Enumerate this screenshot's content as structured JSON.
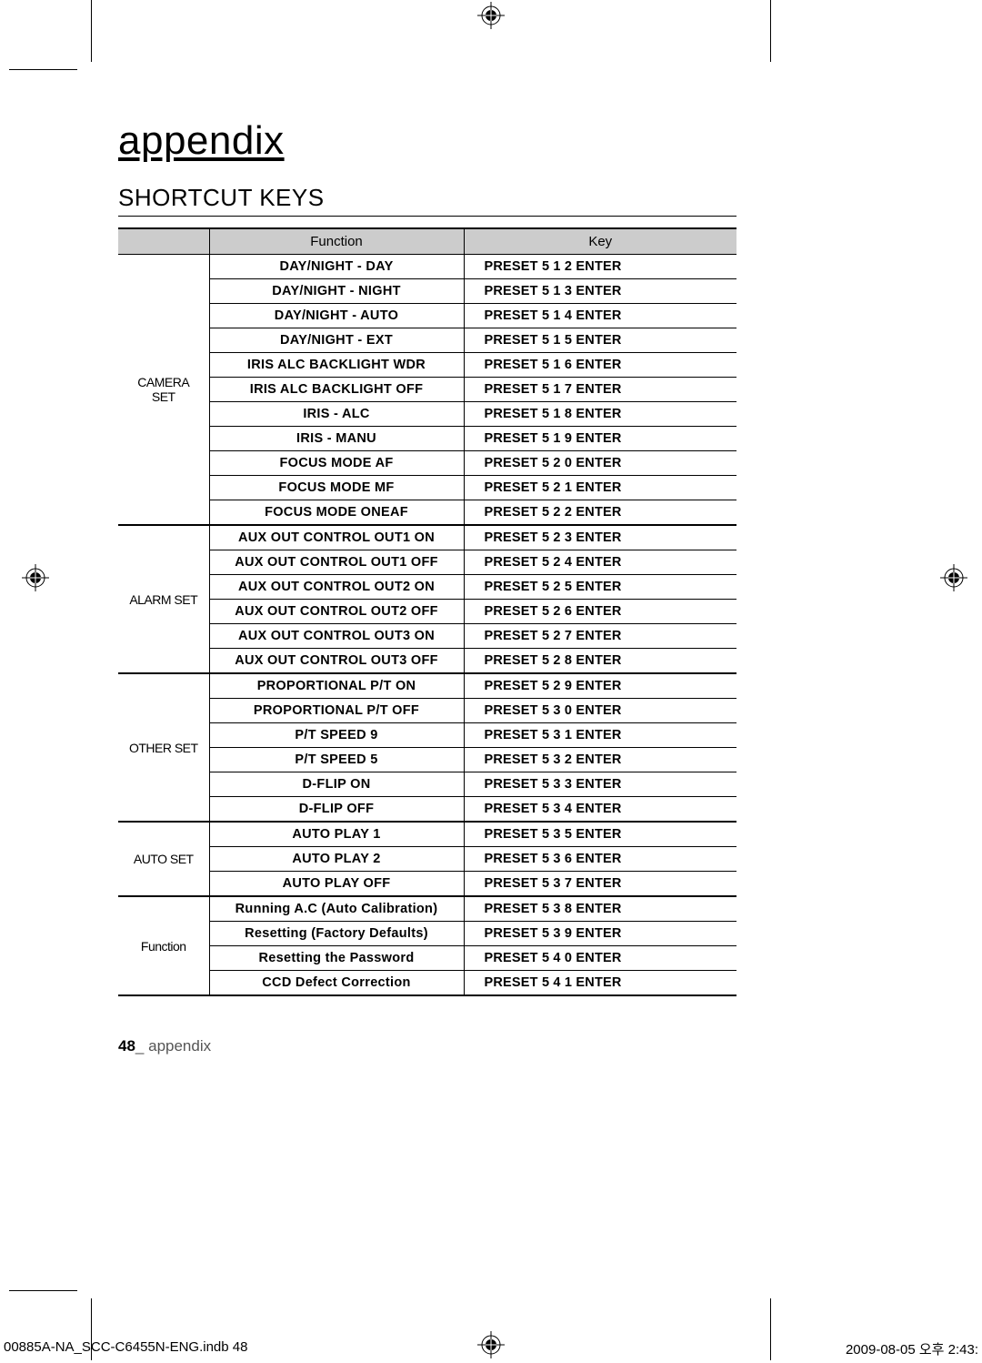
{
  "page": {
    "title": "appendix",
    "section": "SHORTCUT KEYS",
    "page_number": "48",
    "page_label": "appendix"
  },
  "table": {
    "headers": {
      "group": "",
      "function": "Function",
      "key": "Key"
    },
    "header_bg": "#cccccc",
    "border_color": "#000000",
    "groups": [
      {
        "label": "CAMERA SET",
        "rows": [
          {
            "func": "DAY/NIGHT - DAY",
            "key": "PRESET  5  1  2  ENTER"
          },
          {
            "func": "DAY/NIGHT - NIGHT",
            "key": "PRESET  5  1  3  ENTER"
          },
          {
            "func": "DAY/NIGHT - AUTO",
            "key": "PRESET  5  1  4  ENTER"
          },
          {
            "func": "DAY/NIGHT - EXT",
            "key": "PRESET  5  1  5  ENTER"
          },
          {
            "func": "IRIS  ALC  BACKLIGHT  WDR",
            "key": "PRESET  5  1  6  ENTER"
          },
          {
            "func": "IRIS  ALC  BACKLIGHT  OFF",
            "key": "PRESET  5  1  7  ENTER"
          },
          {
            "func": "IRIS - ALC",
            "key": "PRESET  5  1  8  ENTER"
          },
          {
            "func": "IRIS - MANU",
            "key": "PRESET  5  1  9  ENTER"
          },
          {
            "func": "FOCUS MODE  AF",
            "key": "PRESET  5  2  0  ENTER"
          },
          {
            "func": "FOCUS MODE  MF",
            "key": "PRESET  5  2  1  ENTER"
          },
          {
            "func": "FOCUS MODE  ONEAF",
            "key": "PRESET  5  2  2  ENTER"
          }
        ]
      },
      {
        "label": "ALARM SET",
        "rows": [
          {
            "func": "AUX OUT CONTROL  OUT1  ON",
            "key": "PRESET  5  2  3  ENTER"
          },
          {
            "func": "AUX OUT CONTROL  OUT1  OFF",
            "key": "PRESET  5  2  4  ENTER"
          },
          {
            "func": "AUX OUT CONTROL  OUT2  ON",
            "key": "PRESET  5  2  5  ENTER"
          },
          {
            "func": "AUX OUT CONTROL  OUT2  OFF",
            "key": "PRESET  5  2  6  ENTER"
          },
          {
            "func": "AUX OUT CONTROL  OUT3  ON",
            "key": "PRESET  5  2  7  ENTER"
          },
          {
            "func": "AUX OUT CONTROL  OUT3  OFF",
            "key": "PRESET  5  2  8  ENTER"
          }
        ]
      },
      {
        "label": "OTHER SET",
        "rows": [
          {
            "func": "PROPORTIONAL P/T  ON",
            "key": "PRESET  5  2  9  ENTER"
          },
          {
            "func": "PROPORTIONAL P/T  OFF",
            "key": "PRESET  5  3  0  ENTER"
          },
          {
            "func": "P/T SPEED  9",
            "key": "PRESET  5  3  1  ENTER"
          },
          {
            "func": "P/T SPEED  5",
            "key": "PRESET  5  3  2  ENTER"
          },
          {
            "func": "D-FLIP  ON",
            "key": "PRESET  5  3  3  ENTER"
          },
          {
            "func": "D-FLIP  OFF",
            "key": "PRESET  5  3  4  ENTER"
          }
        ]
      },
      {
        "label": "AUTO SET",
        "rows": [
          {
            "func": "AUTO PLAY  1",
            "key": "PRESET  5  3  5  ENTER"
          },
          {
            "func": "AUTO PLAY  2",
            "key": "PRESET  5  3  6  ENTER"
          },
          {
            "func": "AUTO PLAY  OFF",
            "key": "PRESET  5  3  7  ENTER"
          }
        ]
      },
      {
        "label": "Function",
        "rows": [
          {
            "func": "Running A.C (Auto Calibration)",
            "key": "PRESET  5  3  8  ENTER",
            "normal": true
          },
          {
            "func": "Resetting (Factory Defaults)",
            "key": "PRESET  5  3  9  ENTER",
            "normal": true
          },
          {
            "func": "Resetting the Password",
            "key": "PRESET  5  4  0  ENTER",
            "normal": true
          },
          {
            "func": "CCD Defect Correction",
            "key": "PRESET  5  4  1  ENTER",
            "normal": true
          }
        ]
      }
    ]
  },
  "print_footer": {
    "left": "00885A-NA_SCC-C6455N-ENG.indb   48",
    "right": "2009-08-05   오후 2:43:"
  }
}
